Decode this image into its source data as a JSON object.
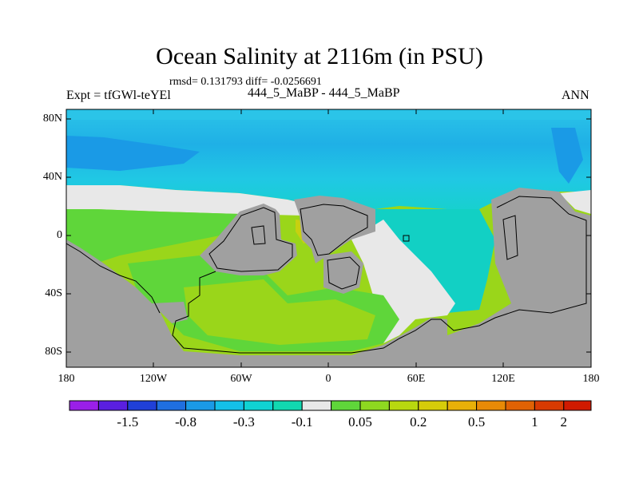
{
  "title": "Ocean Salinity at 2116m (in PSU)",
  "stats_line": "rmsd= 0.131793 diff= -0.0256691",
  "expt_label": "Expt = tfGWl-teYEl",
  "case_label": "444_5_MaBP - 444_5_MaBP",
  "season_label": "ANN",
  "lat_labels": [
    "80N",
    "40N",
    "0",
    "40S",
    "80S"
  ],
  "lon_labels": [
    "180",
    "120W",
    "60W",
    "0",
    "60E",
    "120E",
    "180"
  ],
  "colorbar": {
    "labels": [
      "-1.5",
      "-0.8",
      "-0.3",
      "-0.1",
      "0.05",
      "0.2",
      "0.5",
      "1",
      "2"
    ],
    "colors": [
      "#9a1fe8",
      "#5a1fe0",
      "#2040d8",
      "#1f6fe0",
      "#1a9ae6",
      "#14c0e8",
      "#10d2d2",
      "#12d8b0",
      "#e8e8e8",
      "#5fd63a",
      "#8ed820",
      "#b8d80f",
      "#d6cc0a",
      "#e8b008",
      "#e88a06",
      "#e06204",
      "#d83a02",
      "#d01a00"
    ]
  },
  "map_colors": {
    "land": "#a0a0a0",
    "near_zero": "#e8e8e8",
    "fresh_deep": "#1fa8e6",
    "fresh_mid": "#2bc4e8",
    "fresh_light": "#18d0cf",
    "salty_green": "#5fd63a",
    "salty_yellowgreen": "#9ad61a",
    "salty_yellow": "#c8d010"
  }
}
